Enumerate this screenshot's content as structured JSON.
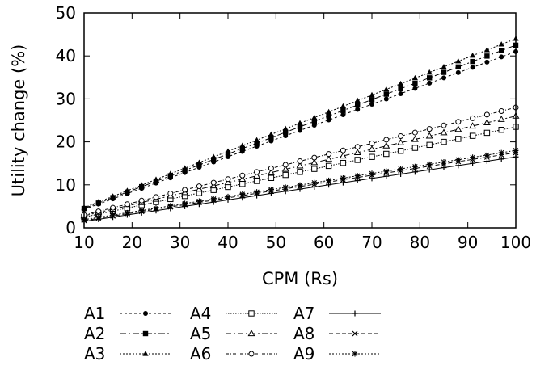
{
  "chart_data": {
    "type": "line",
    "xlabel": "CPM (Rs)",
    "ylabel": "Utility change (%)",
    "xlim": [
      10,
      100
    ],
    "ylim": [
      0,
      50
    ],
    "xticks": [
      "10",
      "20",
      "30",
      "40",
      "50",
      "60",
      "70",
      "80",
      "90",
      "100"
    ],
    "yticks": [
      "0",
      "10",
      "20",
      "30",
      "40",
      "50"
    ],
    "grid": false,
    "legend_position": "bottom",
    "x": [
      10,
      13,
      16,
      19,
      22,
      25,
      28,
      31,
      34,
      37,
      40,
      43,
      46,
      49,
      52,
      55,
      58,
      61,
      64,
      67,
      70,
      73,
      76,
      79,
      82,
      85,
      88,
      91,
      94,
      97,
      100
    ],
    "series": [
      {
        "name": "A1",
        "marker": "filled-circle",
        "dash": "3,3",
        "start": 4.3,
        "end": 41.0
      },
      {
        "name": "A2",
        "marker": "filled-square",
        "dash": "8,3,2,3",
        "start": 4.5,
        "end": 42.5
      },
      {
        "name": "A3",
        "marker": "filled-triangle",
        "dash": "2,2",
        "start": 4.7,
        "end": 44.0
      },
      {
        "name": "A4",
        "marker": "open-square",
        "dash": "1.5,1.5",
        "start": 2.5,
        "end": 23.5
      },
      {
        "name": "A5",
        "marker": "open-triangle",
        "dash": "7,3,2,3",
        "start": 2.8,
        "end": 26.0
      },
      {
        "name": "A6",
        "marker": "open-circle",
        "dash": "4,2,1,2",
        "start": 3.0,
        "end": 28.0
      },
      {
        "name": "A7",
        "marker": "plus",
        "dash": "",
        "start": 1.5,
        "end": 16.5
      },
      {
        "name": "A8",
        "marker": "cross",
        "dash": "5,3",
        "start": 1.7,
        "end": 17.5
      },
      {
        "name": "A9",
        "marker": "star",
        "dash": "2,2",
        "start": 1.9,
        "end": 18.0
      }
    ]
  }
}
